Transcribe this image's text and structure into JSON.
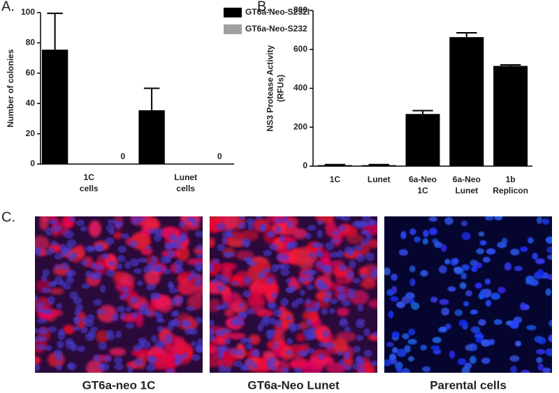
{
  "chart_data": [
    {
      "type": "bar",
      "panel_label": "A.",
      "y_label": [
        "Number of colonies"
      ],
      "categories": [
        "1C cells",
        "Lunet cells"
      ],
      "series": [
        {
          "name": "GT6a-Neo-S232I",
          "color": "#000000",
          "values": [
            75.5,
            35.5
          ],
          "errors": [
            24,
            14.5
          ]
        },
        {
          "name": "GT6a-Neo-S232",
          "color": "#a0a0a0",
          "values": [
            0,
            0
          ]
        }
      ],
      "data_labels_series": [
        1
      ],
      "ylim": [
        0,
        100
      ],
      "yticks": [
        0,
        20,
        40,
        60,
        80,
        100
      ],
      "legend": "top-right"
    },
    {
      "type": "bar",
      "panel_label": "B.",
      "y_label": [
        "NS3 Protease Activity",
        "(RFUs)"
      ],
      "categories": [
        "1C",
        "Lunet",
        "6a-Neo 1C",
        "6a-Neo Lunet",
        "1b Replicon"
      ],
      "values": [
        5,
        5,
        268,
        663,
        515
      ],
      "errors": [
        3,
        3,
        17,
        22,
        5
      ],
      "color": "#000000",
      "ylim": [
        0,
        800
      ],
      "yticks": [
        0,
        200,
        400,
        600,
        800
      ]
    }
  ],
  "panel_c": {
    "label": "C.",
    "images": [
      {
        "caption": "GT6a-neo 1C"
      },
      {
        "caption": "GT6a-Neo Lunet"
      },
      {
        "caption": "Parental cells"
      }
    ]
  }
}
